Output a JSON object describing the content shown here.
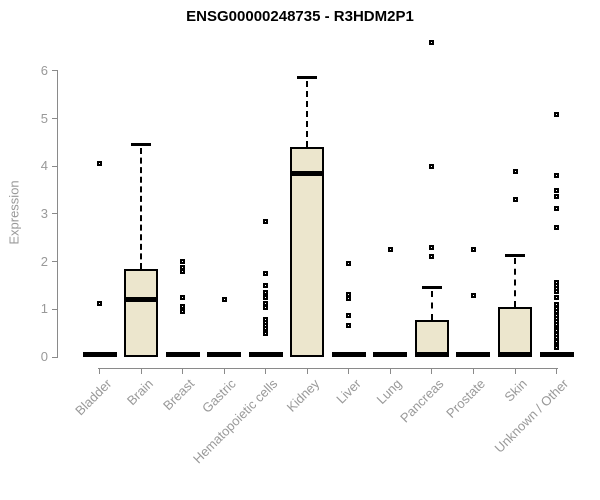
{
  "title": "ENSG00000248735 - R3HDM2P1",
  "chart_data": {
    "type": "boxplot",
    "title": "ENSG00000248735 - R3HDM2P1",
    "xlabel": "",
    "ylabel": "Expression",
    "ylim": [
      0,
      6
    ],
    "yticks": [
      0,
      1,
      2,
      3,
      4,
      5,
      6
    ],
    "grid": false,
    "legend": false,
    "colors": {
      "box_fill": "#ece6cd",
      "box_border": "#000000",
      "axis": "#8a8a8a",
      "tick_label": "#999999",
      "title": "#000000"
    },
    "categories": [
      "Bladder",
      "Brain",
      "Breast",
      "Gastric",
      "Hematopoietic cells",
      "Kidney",
      "Liver",
      "Lung",
      "Pancreas",
      "Prostate",
      "Skin",
      "Unknown / Other"
    ],
    "series": [
      {
        "name": "Bladder",
        "q1": 0,
        "median": 0,
        "q3": 0,
        "whisker_low": 0,
        "whisker_high": 0,
        "outliers": [
          4.05,
          1.12
        ]
      },
      {
        "name": "Brain",
        "q1": 0,
        "median": 1.2,
        "q3": 1.85,
        "whisker_low": 0,
        "whisker_high": 4.45,
        "outliers": []
      },
      {
        "name": "Breast",
        "q1": 0,
        "median": 0,
        "q3": 0,
        "whisker_low": 0,
        "whisker_high": 0,
        "outliers": [
          2.0,
          1.87,
          1.8,
          1.25,
          1.05,
          0.95
        ]
      },
      {
        "name": "Gastric",
        "q1": 0,
        "median": 0,
        "q3": 0,
        "whisker_low": 0,
        "whisker_high": 0,
        "outliers": [
          1.2
        ]
      },
      {
        "name": "Hematopoietic cells",
        "q1": 0,
        "median": 0,
        "q3": 0,
        "whisker_low": 0,
        "whisker_high": 0,
        "outliers": [
          2.85,
          1.75,
          1.5,
          1.35,
          1.25,
          1.13,
          1.03,
          0.78,
          0.72,
          0.66,
          0.6,
          0.5
        ]
      },
      {
        "name": "Kidney",
        "q1": 0,
        "median": 3.85,
        "q3": 4.4,
        "whisker_low": 0,
        "whisker_high": 5.85,
        "outliers": []
      },
      {
        "name": "Liver",
        "q1": 0,
        "median": 0,
        "q3": 0,
        "whisker_low": 0,
        "whisker_high": 0,
        "outliers": [
          1.95,
          1.3,
          1.22,
          0.88,
          0.65
        ]
      },
      {
        "name": "Lung",
        "q1": 0,
        "median": 0,
        "q3": 0,
        "whisker_low": 0,
        "whisker_high": 0,
        "outliers": [
          2.25
        ]
      },
      {
        "name": "Pancreas",
        "q1": 0,
        "median": 0,
        "q3": 0.78,
        "whisker_low": 0,
        "whisker_high": 1.45,
        "outliers": [
          6.6,
          4.0,
          2.3,
          2.1
        ]
      },
      {
        "name": "Prostate",
        "q1": 0,
        "median": 0,
        "q3": 0,
        "whisker_low": 0,
        "whisker_high": 0,
        "outliers": [
          2.25,
          1.28
        ]
      },
      {
        "name": "Skin",
        "q1": 0,
        "median": 0,
        "q3": 1.05,
        "whisker_low": 0,
        "whisker_high": 2.13,
        "outliers": [
          3.88,
          3.3
        ]
      },
      {
        "name": "Unknown / Other",
        "q1": 0,
        "median": 0,
        "q3": 0,
        "whisker_low": 0,
        "whisker_high": 0,
        "outliers": [
          5.08,
          3.8,
          3.5,
          3.37,
          3.12,
          2.72,
          1.57,
          1.5,
          1.43,
          1.37,
          1.25,
          1.1,
          1.02,
          0.95,
          0.88,
          0.8,
          0.75,
          0.68,
          0.6,
          0.55,
          0.48,
          0.4,
          0.33,
          0.25,
          0.19
        ]
      }
    ]
  }
}
